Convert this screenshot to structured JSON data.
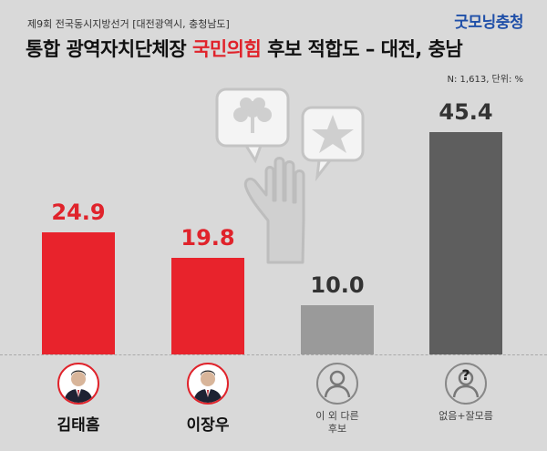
{
  "header": {
    "subtitle": "제9회 전국동시지방선거 [대전광역시, 충청남도]",
    "brand": "굿모닝충청",
    "title_part1": "통합 광역자치단체장 ",
    "title_highlight": "국민의힘",
    "title_part2": " 후보 적합도 – 대전, 충남",
    "note": "N: 1,613, 단위: %"
  },
  "colors": {
    "background": "#d9d9d9",
    "highlight": "#e0232b",
    "candidate_bar": "#e8232c",
    "other_bar": "#9a9a9a",
    "none_bar": "#5e5e5e",
    "brand": "#1f4fa8"
  },
  "chart_data": {
    "type": "bar",
    "categories": [
      "김태흠",
      "이장우",
      "이 외 다른\n후보",
      "없음+잘모름"
    ],
    "values": [
      24.9,
      19.8,
      10.0,
      45.4
    ],
    "value_labels": [
      "24.9",
      "19.8",
      "10.0",
      "45.4"
    ],
    "ylim": [
      0,
      50
    ],
    "grid": false,
    "legend": "none",
    "icons": [
      "candidate-photo",
      "candidate-photo",
      "person-icon",
      "question-person-icon"
    ]
  }
}
